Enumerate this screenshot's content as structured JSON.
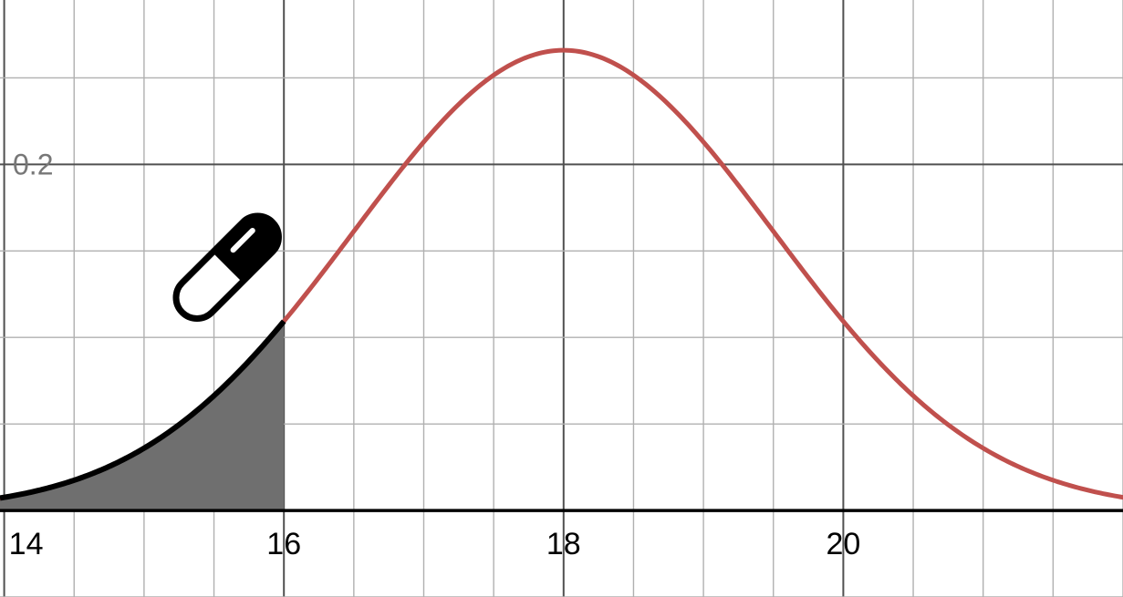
{
  "chart_data": {
    "type": "line",
    "title": "",
    "xlabel": "",
    "ylabel": "",
    "xlim": [
      13.97,
      22.0
    ],
    "ylim": [
      -0.05,
      0.295
    ],
    "grid": true,
    "minor_x_step": 0.5,
    "minor_y_step": 0.05,
    "x_ticks": [
      14,
      16,
      18,
      20
    ],
    "x_tick_labels": [
      "14",
      "16",
      "18",
      "20"
    ],
    "y_ticks": [
      0.2
    ],
    "y_tick_labels": [
      "0.2"
    ],
    "series": [
      {
        "kind": "normal-density",
        "mean": 18,
        "sd": 1.5,
        "color": "#c0504d"
      },
      {
        "kind": "normal-density",
        "mean": 18,
        "sd": 1.5,
        "x_range": [
          13.97,
          16
        ],
        "color": "#000000",
        "shaded": true,
        "fill_color": "#6f6f6f"
      }
    ],
    "annotations": [
      {
        "icon": "pill-capsule-icon",
        "x": 15.4,
        "y": 0.15
      }
    ],
    "colors": {
      "grid": "#b0b0b0",
      "axis": "#000000",
      "curve": "#c0504d",
      "shaded_curve": "#000000",
      "fill": "#6f6f6f"
    }
  }
}
